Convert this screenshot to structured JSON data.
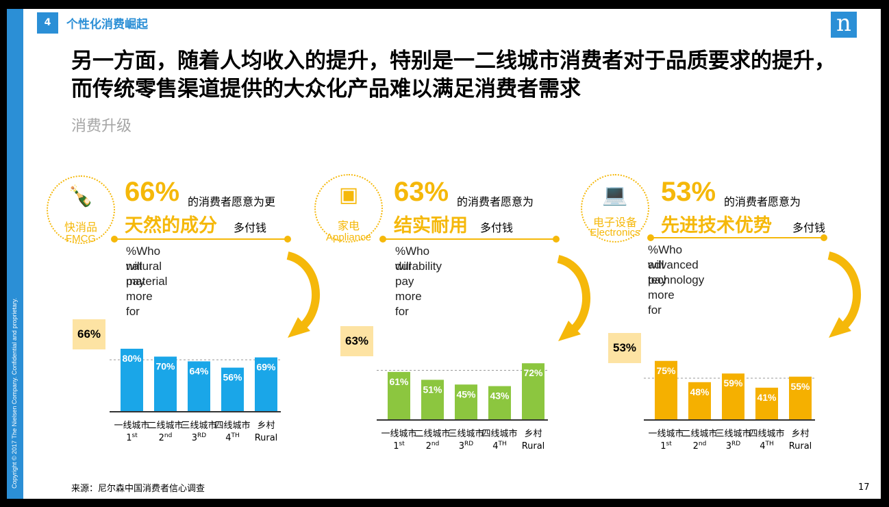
{
  "header": {
    "section_number": "4",
    "section_title": "个性化消费崛起",
    "logo_text": "n"
  },
  "headline": "另一方面，随着人均收入的提升，特别是一二线城市消费者对于品质要求的提升，而传统零售渠道提供的大众化产品难以满足消费者需求",
  "subheadline": "消费升级",
  "copyright": "Copyright © 2017 The Nielsen Company. Confidential and proprietary.",
  "source": "来源：尼尔森中国消费者信心调查",
  "page_number": "17",
  "panels": [
    {
      "category_zh": "快消品",
      "category_en": "FMCG",
      "icon": "bottles-icon",
      "big_pct": "66%",
      "text_pre": "的消费者愿意为更",
      "attribute": "天然的成分",
      "text_post": "多付钱",
      "desc_line1": "%Who will pay more for",
      "desc_line2": "natural material",
      "avg_label": "66%",
      "color": "#1aa6e8"
    },
    {
      "category_zh": "家电",
      "category_en": "Appliance",
      "icon": "washing-machine-icon",
      "big_pct": "63%",
      "text_pre": "的消费者愿意为",
      "attribute": "结实耐用",
      "text_post": "多付钱",
      "desc_line1": "%Who will pay more for",
      "desc_line2": "durability",
      "avg_label": "63%",
      "color": "#8cc63f"
    },
    {
      "category_zh": "电子设备",
      "category_en": "Electronics",
      "icon": "laptop-icon",
      "big_pct": "53%",
      "text_pre": "的消费者愿意为",
      "attribute": "先进技术优势",
      "text_post": "多付钱",
      "desc_line1": "%Who will pay more for",
      "desc_line2": "advanced technology",
      "avg_label": "53%",
      "color": "#f5b000"
    }
  ],
  "chart_data": [
    {
      "type": "bar",
      "categories": [
        "一线城市",
        "二线城市",
        "三线城市",
        "四线城市",
        "乡村"
      ],
      "categories_en": [
        [
          "1",
          "st"
        ],
        [
          "2",
          "nd"
        ],
        [
          "3",
          "RD"
        ],
        [
          "4",
          "TH"
        ],
        [
          "Rural",
          ""
        ]
      ],
      "values": [
        80,
        70,
        64,
        56,
        69
      ],
      "value_labels": [
        "80%",
        "70%",
        "64%",
        "56%",
        "69%"
      ],
      "reference_line": 66,
      "ylim": [
        0,
        100
      ]
    },
    {
      "type": "bar",
      "categories": [
        "一线城市",
        "二线城市",
        "三线城市",
        "四线城市",
        "乡村"
      ],
      "categories_en": [
        [
          "1",
          "st"
        ],
        [
          "2",
          "nd"
        ],
        [
          "3",
          "RD"
        ],
        [
          "4",
          "TH"
        ],
        [
          "Rural",
          ""
        ]
      ],
      "values": [
        61,
        51,
        45,
        43,
        72
      ],
      "value_labels": [
        "61%",
        "51%",
        "45%",
        "43%",
        "72%"
      ],
      "reference_line": 63,
      "ylim": [
        0,
        100
      ]
    },
    {
      "type": "bar",
      "categories": [
        "一线城市",
        "二线城市",
        "三线城市",
        "四线城市",
        "乡村"
      ],
      "categories_en": [
        [
          "1",
          "st"
        ],
        [
          "2",
          "nd"
        ],
        [
          "3",
          "RD"
        ],
        [
          "4",
          "TH"
        ],
        [
          "Rural",
          ""
        ]
      ],
      "values": [
        75,
        48,
        59,
        41,
        55
      ],
      "value_labels": [
        "75%",
        "48%",
        "59%",
        "41%",
        "55%"
      ],
      "reference_line": 53,
      "ylim": [
        0,
        100
      ]
    }
  ]
}
